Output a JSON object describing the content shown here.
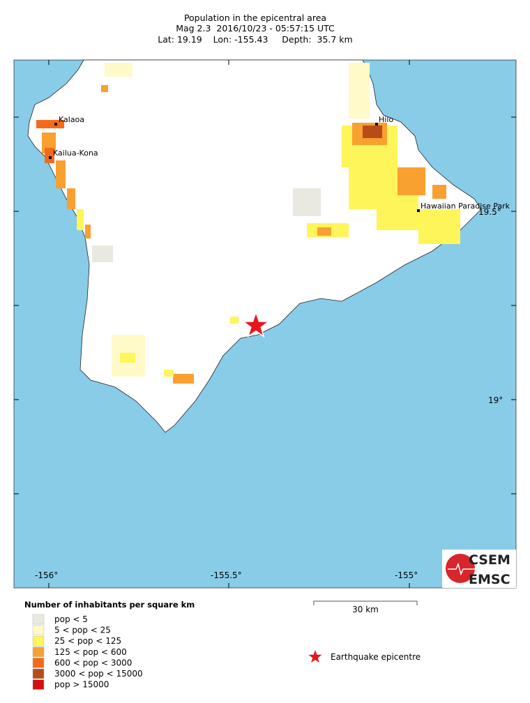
{
  "header": {
    "title": "Population in the epicentral area",
    "line2": "Mag 2.3  2016/10/23 - 05:57:15 UTC",
    "line3": "Lat: 19.19    Lon: -155.43     Depth:  35.7 km"
  },
  "map": {
    "places": [
      "Kalaoa",
      "Kailua-Kona",
      "Hilo",
      "Hawaiian Paradise Park"
    ],
    "lat_labels": [
      "19.5°",
      "19°"
    ],
    "lon_labels": [
      "-156°",
      "-155.5°",
      "-155°"
    ],
    "scale": "30 km",
    "epicentre": "Earthquake epicentre"
  },
  "legend": {
    "title": "Number of inhabitants per square km",
    "items": [
      {
        "label": "pop < 5",
        "color": "#e9e9e1"
      },
      {
        "label": "5 < pop < 25",
        "color": "#fffac8"
      },
      {
        "label": "25 < pop < 125",
        "color": "#fdf55a"
      },
      {
        "label": "125 < pop < 600",
        "color": "#f8a030"
      },
      {
        "label": "600 < pop < 3000",
        "color": "#f46a1c"
      },
      {
        "label": "3000 < pop < 15000",
        "color": "#b84c18"
      },
      {
        "label": "pop > 15000",
        "color": "#d10f0f"
      }
    ]
  },
  "logo": {
    "top": "CSEM",
    "bottom": "EMSC"
  }
}
